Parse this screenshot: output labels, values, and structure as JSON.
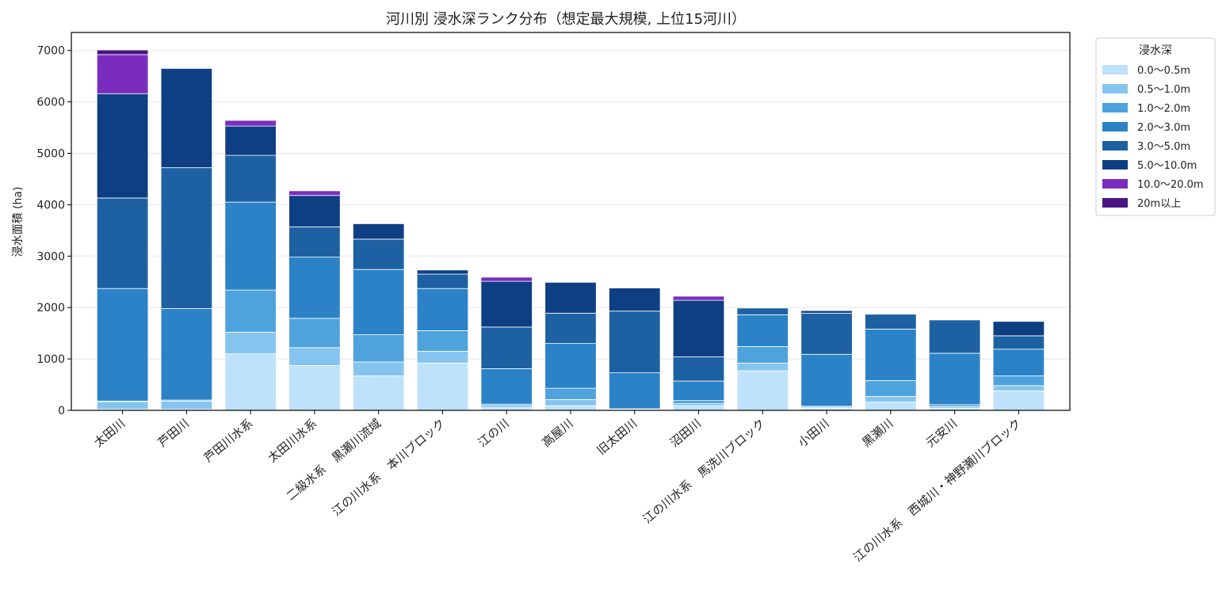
{
  "chart_data": {
    "type": "bar",
    "stacked": true,
    "title": "河川別 浸水深ランク分布（想定最大規模, 上位15河川）",
    "xlabel": "",
    "ylabel": "浸水面積 (ha)",
    "ylim": [
      0,
      7350
    ],
    "yticks": [
      0,
      1000,
      2000,
      3000,
      4000,
      5000,
      6000,
      7000
    ],
    "grid": true,
    "legend_title": "浸水深",
    "legend_position": "outside-top-right",
    "categories": [
      "太田川",
      "芦田川",
      "芦田川水系",
      "太田川水系",
      "二級水系　黒瀬川流域",
      "江の川水系　本川ブロック",
      "江の川",
      "高屋川",
      "旧太田川",
      "沼田川",
      "江の川水系　馬洗川ブロック",
      "小田川",
      "黒瀬川",
      "元安川",
      "江の川水系　西城川・神野瀬川ブロック"
    ],
    "series": [
      {
        "name": "0.0〜0.5m",
        "color": "#bfe2fb",
        "values": [
          20,
          20,
          1100,
          870,
          670,
          920,
          50,
          90,
          10,
          90,
          770,
          40,
          160,
          40,
          380
        ]
      },
      {
        "name": "0.5〜1.0m",
        "color": "#85c4ef",
        "values": [
          150,
          160,
          420,
          350,
          270,
          230,
          40,
          120,
          10,
          40,
          150,
          20,
          110,
          30,
          100
        ]
      },
      {
        "name": "1.0〜2.0m",
        "color": "#4ea3dd",
        "values": [
          10,
          20,
          820,
          570,
          530,
          400,
          30,
          220,
          10,
          60,
          320,
          20,
          310,
          40,
          190
        ]
      },
      {
        "name": "2.0〜3.0m",
        "color": "#2b82c6",
        "values": [
          2190,
          1780,
          1710,
          1190,
          1270,
          820,
          690,
          870,
          700,
          380,
          620,
          1010,
          1000,
          1000,
          520
        ]
      },
      {
        "name": "3.0〜5.0m",
        "color": "#1d61a3",
        "values": [
          1760,
          2740,
          910,
          590,
          590,
          280,
          810,
          590,
          1200,
          470,
          130,
          800,
          290,
          650,
          260
        ]
      },
      {
        "name": "5.0〜10.0m",
        "color": "#0f3f83",
        "values": [
          2030,
          1930,
          570,
          610,
          300,
          80,
          890,
          600,
          450,
          1100,
          0,
          50,
          0,
          10,
          280
        ]
      },
      {
        "name": "10.0〜20.0m",
        "color": "#7b2cbf",
        "values": [
          760,
          0,
          110,
          90,
          0,
          0,
          80,
          0,
          0,
          80,
          0,
          0,
          0,
          0,
          0
        ]
      },
      {
        "name": "20m以上",
        "color": "#4a1582",
        "values": [
          90,
          0,
          0,
          0,
          0,
          0,
          0,
          0,
          0,
          0,
          0,
          0,
          0,
          0,
          0
        ]
      }
    ]
  }
}
